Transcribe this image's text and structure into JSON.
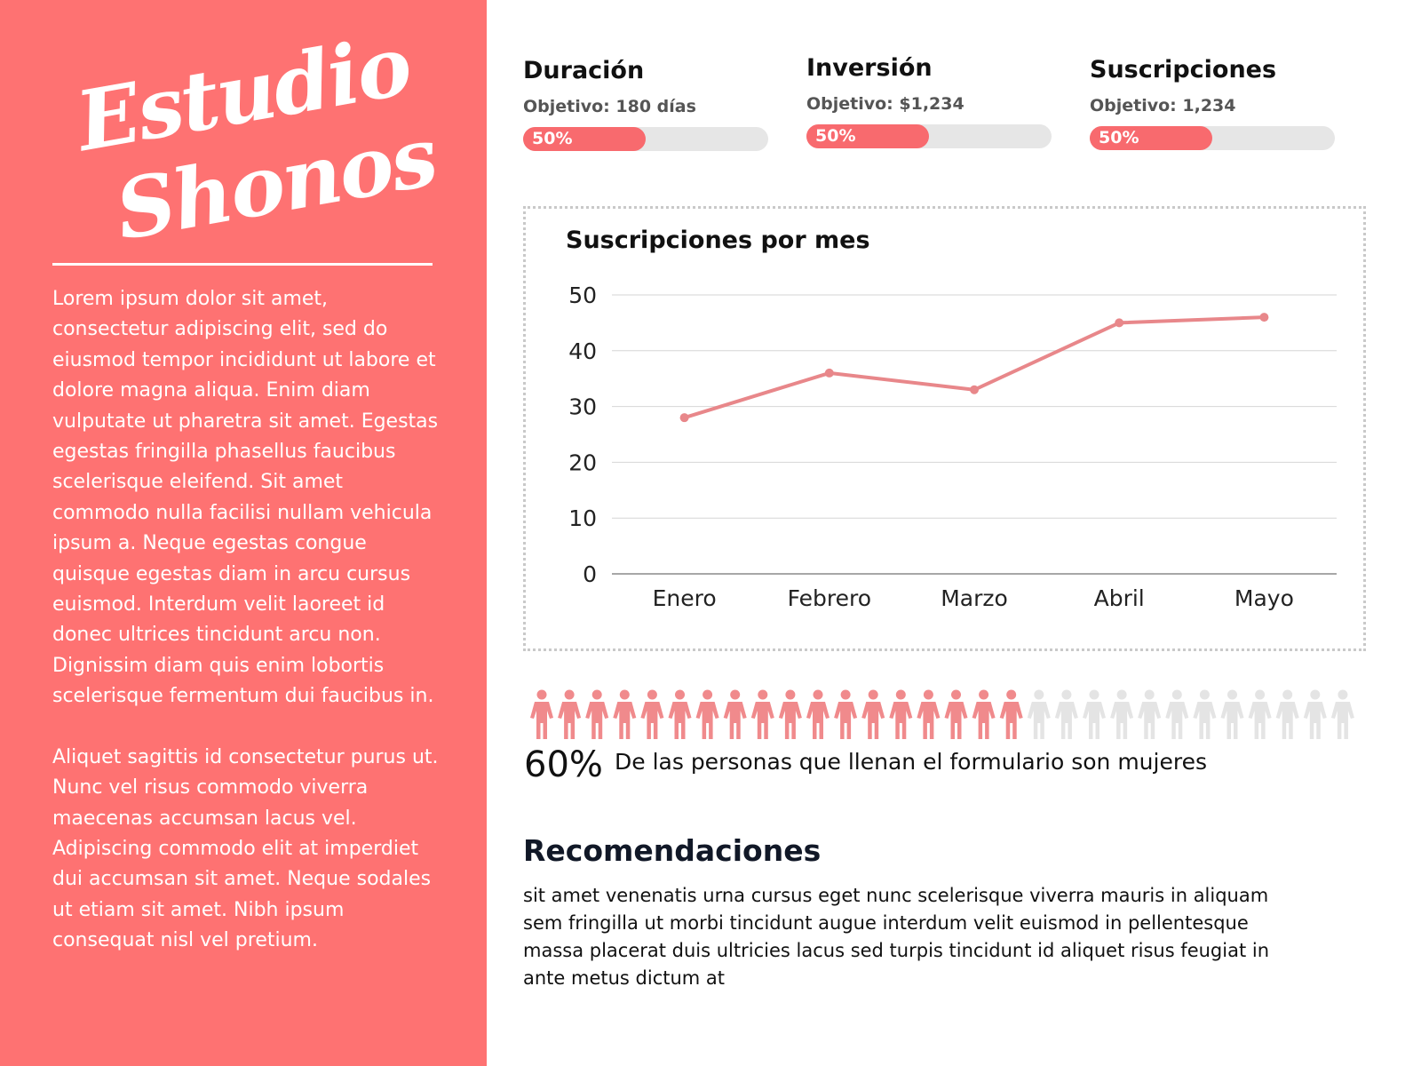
{
  "brand": {
    "line1": "Estudio",
    "line2": "Shonos"
  },
  "intro": {
    "paragraph1": "Lorem ipsum dolor sit amet, consectetur adipiscing elit, sed do eiusmod tempor incididunt ut labore et dolore magna aliqua. Enim diam vulputate ut pharetra sit amet. Egestas egestas fringilla phasellus faucibus scelerisque eleifend. Sit amet commodo nulla facilisi nullam vehicula ipsum a. Neque egestas congue quisque egestas diam in arcu cursus euismod. Interdum velit laoreet id donec ultrices tincidunt arcu non. Dignissim diam quis enim lobortis scelerisque fermentum dui faucibus in.",
    "paragraph2": "Aliquet sagittis id consectetur purus ut. Nunc vel risus commodo viverra maecenas accumsan lacus vel. Adipiscing commodo elit at imperdiet dui accumsan sit amet. Neque sodales ut etiam sit amet. Nibh ipsum consequat nisl vel pretium."
  },
  "kpis": [
    {
      "title": "Duración",
      "goal": "Objetivo: 180 días",
      "percent_label": "50%",
      "progress": 0.5
    },
    {
      "title": "Inversión",
      "goal": "Objetivo: $1,234",
      "percent_label": "50%",
      "progress": 0.5
    },
    {
      "title": "Suscripciones",
      "goal": "Objetivo: 1,234",
      "percent_label": "50%",
      "progress": 0.5
    }
  ],
  "colors": {
    "panel": "#fe7272",
    "accent": "#f86a6e",
    "line": "#e8878a",
    "track": "#e6e6e6",
    "person_filled": "#f08a8c",
    "person_empty": "#e4e4e4"
  },
  "chart_data": {
    "type": "line",
    "title": "Suscripciones por mes",
    "categories": [
      "Enero",
      "Febrero",
      "Marzo",
      "Abril",
      "Mayo"
    ],
    "values": [
      28,
      36,
      33,
      45,
      46
    ],
    "ylim": [
      0,
      50
    ],
    "yticks": [
      0,
      10,
      20,
      30,
      40,
      50
    ],
    "grid": true,
    "xlabel": "",
    "ylabel": ""
  },
  "pictogram": {
    "total": 30,
    "filled": 18,
    "percent_label": "60%",
    "caption": "De las personas que llenan el formulario son mujeres",
    "icon": "person-icon"
  },
  "recommendations": {
    "title": "Recomendaciones",
    "text": "sit amet venenatis urna cursus eget nunc scelerisque viverra mauris in aliquam sem fringilla ut morbi tincidunt augue interdum velit euismod in pellentesque massa placerat duis ultricies lacus sed turpis tincidunt id aliquet risus feugiat in ante metus dictum at"
  }
}
